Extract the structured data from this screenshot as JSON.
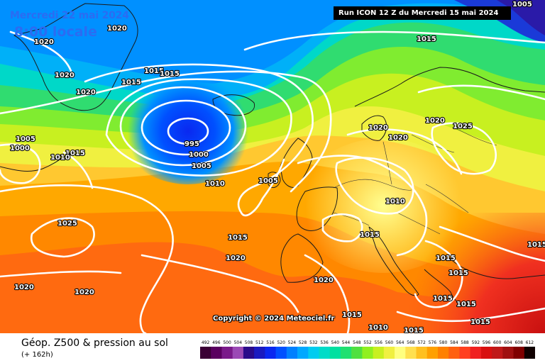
{
  "header": {
    "date": "Mercredi 22 mai 2024",
    "hour": "8:00 locale",
    "run": "Run ICON 12 Z du Mercredi 15 mai 2024"
  },
  "copyright": "Copyright © 2024 Meteociel.fr",
  "legend": {
    "title": "Géop. Z500 & pression au sol",
    "subtitle": "(+ 162h)",
    "scale_values": [
      "492",
      "496",
      "500",
      "504",
      "508",
      "512",
      "516",
      "520",
      "524",
      "528",
      "532",
      "536",
      "540",
      "544",
      "548",
      "552",
      "556",
      "560",
      "564",
      "568",
      "572",
      "576",
      "580",
      "584",
      "588",
      "592",
      "596",
      "600",
      "604",
      "608",
      "612"
    ],
    "scale_colors": [
      "#3b0035",
      "#5a0060",
      "#7a1a8a",
      "#9b49b5",
      "#2a0a8a",
      "#1a1ac0",
      "#0a28f0",
      "#0050ff",
      "#0080ff",
      "#00a8ff",
      "#00ccf0",
      "#00dcc8",
      "#00e0a0",
      "#20e070",
      "#50e040",
      "#90f020",
      "#c8f020",
      "#f0f040",
      "#ffff80",
      "#ffe050",
      "#ffc020",
      "#ffa000",
      "#ff8000",
      "#ff6010",
      "#ff4020",
      "#f02020",
      "#d81010",
      "#c01818",
      "#a01010",
      "#800000",
      "#100000"
    ]
  },
  "pressure_labels": [
    "1005",
    "1020",
    "1020",
    "1020",
    "1015",
    "1015",
    "1015",
    "1020",
    "1005",
    "1000",
    "1015",
    "1010",
    "995",
    "1000",
    "1005",
    "1010",
    "1005",
    "1015",
    "1020",
    "1020",
    "1020",
    "1025",
    "1025",
    "1010",
    "1015",
    "1015",
    "1015",
    "1015",
    "1015",
    "1020",
    "1020",
    "1020",
    "1020",
    "1015",
    "1010",
    "1015",
    "1015",
    "1015",
    "1015"
  ]
}
